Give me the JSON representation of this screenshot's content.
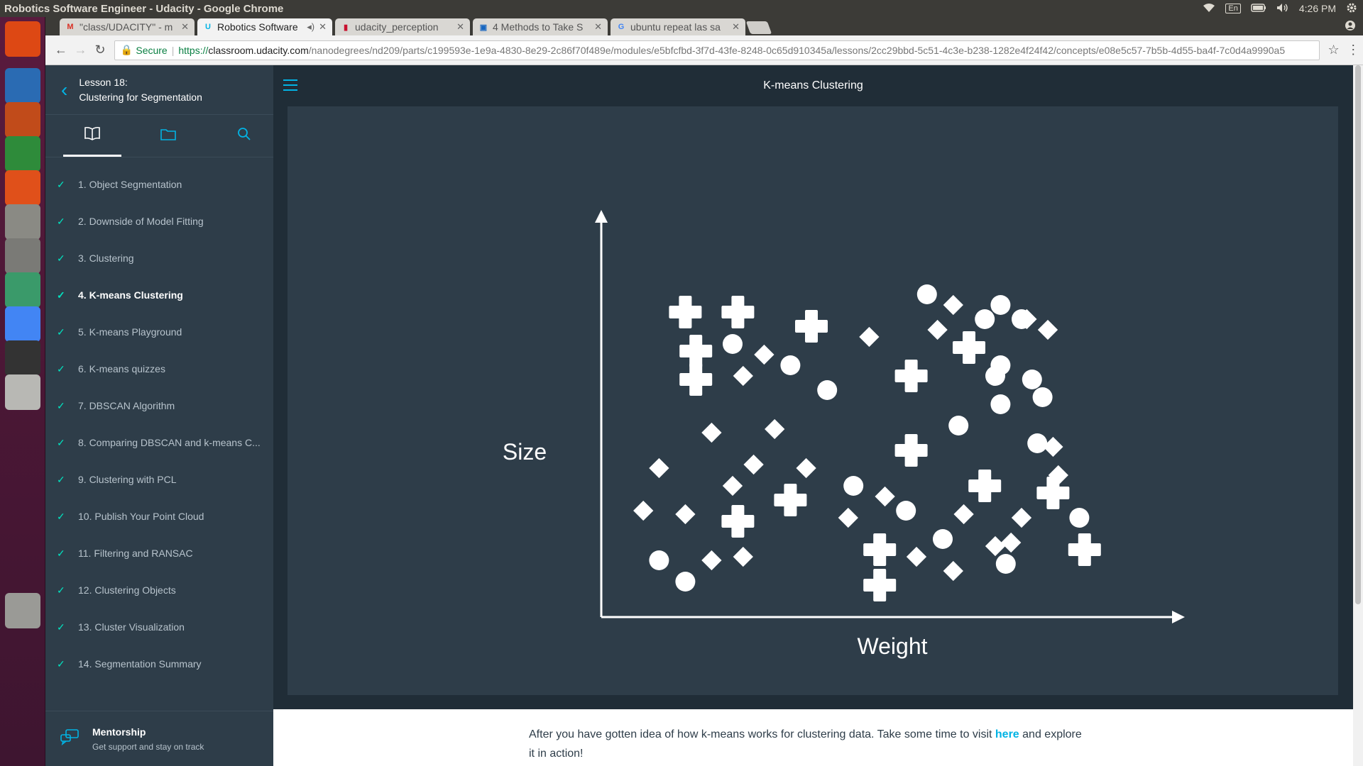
{
  "os": {
    "window_title": "Robotics Software Engineer - Udacity - Google Chrome",
    "keyboard_layout": "En",
    "clock": "4:26 PM"
  },
  "launcher": [
    {
      "name": "ubuntu-dash-icon",
      "color": "#dd4814"
    },
    {
      "name": "writer-icon",
      "color": "#2a6bb3"
    },
    {
      "name": "impress-icon",
      "color": "#c14b1a"
    },
    {
      "name": "calc-icon",
      "color": "#2e8b3a"
    },
    {
      "name": "software-center-icon",
      "color": "#e0501a"
    },
    {
      "name": "files-icon",
      "color": "#8a8a84"
    },
    {
      "name": "system-settings-icon",
      "color": "#7a7a76"
    },
    {
      "name": "atom-icon",
      "color": "#3a9a6a"
    },
    {
      "name": "chrome-icon",
      "color": "#4285f4"
    },
    {
      "name": "terminal-icon",
      "color": "#333333"
    },
    {
      "name": "disk-icon",
      "color": "#b8b8b4"
    },
    {
      "name": "trash-icon",
      "color": "#9a9a96"
    }
  ],
  "tabs": [
    {
      "title": "\"class/UDACITY\" - m",
      "favicon": "M",
      "fav_color": "#d93025"
    },
    {
      "title": "Robotics Software",
      "favicon": "U",
      "fav_color": "#02b3e4"
    },
    {
      "title": "udacity_perception",
      "favicon": "▮",
      "fav_color": "#c8102e"
    },
    {
      "title": "4 Methods to Take S",
      "favicon": "▣",
      "fav_color": "#1565c0"
    },
    {
      "title": "ubuntu repeat las sa",
      "favicon": "G",
      "fav_color": "#4285f4"
    }
  ],
  "address": {
    "secure_label": "Secure",
    "scheme": "https://",
    "host": "classroom.udacity.com",
    "path": "/nanodegrees/nd209/parts/c199593e-1e9a-4830-8e29-2c86f70f489e/modules/e5bfcfbd-3f7d-43fe-8248-0c65d910345a/lessons/2cc29bbd-5c51-4c3e-b238-1282e4f24f42/concepts/e08e5c57-7b5b-4d55-ba4f-7c0d4a9990a5"
  },
  "sidebar": {
    "lesson_number": "Lesson 18:",
    "lesson_title": "Clustering for Segmentation",
    "concepts": [
      "1. Object Segmentation",
      "2. Downside of Model Fitting",
      "3. Clustering",
      "4. K-means Clustering",
      "5. K-means Playground",
      "6. K-means quizzes",
      "7. DBSCAN Algorithm",
      "8. Comparing DBSCAN and k-means C...",
      "9. Clustering with PCL",
      "10. Publish Your Point Cloud",
      "11. Filtering and RANSAC",
      "12. Clustering Objects",
      "13. Cluster Visualization",
      "14. Segmentation Summary"
    ],
    "active_index": 3,
    "mentorship_title": "Mentorship",
    "mentorship_subtitle": "Get support and stay on track"
  },
  "main": {
    "concept_title": "K-means Clustering",
    "body_text_before": "After you have gotten idea of how k-means works for clustering data. Take some time to visit ",
    "body_link": "here",
    "body_text_after": " and explore it in action!"
  },
  "chart_data": {
    "type": "scatter",
    "title": "",
    "xlabel": "Weight",
    "ylabel": "Size",
    "xlim": [
      0,
      100
    ],
    "ylim": [
      0,
      100
    ],
    "grid": false,
    "series": [
      {
        "marker": "cross",
        "points": [
          [
            16,
            86
          ],
          [
            26,
            86
          ],
          [
            40,
            82
          ],
          [
            18,
            75
          ],
          [
            18,
            67
          ],
          [
            59,
            68
          ],
          [
            70,
            76
          ],
          [
            59,
            47
          ],
          [
            73,
            37
          ],
          [
            36,
            33
          ],
          [
            26,
            27
          ],
          [
            53,
            19
          ],
          [
            53,
            9
          ],
          [
            86,
            35
          ],
          [
            92,
            19
          ]
        ]
      },
      {
        "marker": "circle",
        "points": [
          [
            25,
            77
          ],
          [
            36,
            71
          ],
          [
            43,
            64
          ],
          [
            62,
            91
          ],
          [
            73,
            84
          ],
          [
            76,
            88
          ],
          [
            80,
            84
          ],
          [
            75,
            68
          ],
          [
            76,
            71
          ],
          [
            82,
            67
          ],
          [
            84,
            62
          ],
          [
            76,
            60
          ],
          [
            68,
            54
          ],
          [
            83,
            49
          ],
          [
            48,
            37
          ],
          [
            58,
            30
          ],
          [
            65,
            22
          ],
          [
            91,
            28
          ],
          [
            11,
            16
          ],
          [
            16,
            10
          ],
          [
            77,
            15
          ]
        ]
      },
      {
        "marker": "diamond",
        "points": [
          [
            31,
            74
          ],
          [
            27,
            68
          ],
          [
            67,
            88
          ],
          [
            64,
            81
          ],
          [
            81,
            84
          ],
          [
            85,
            81
          ],
          [
            51,
            79
          ],
          [
            21,
            52
          ],
          [
            33,
            53
          ],
          [
            11,
            42
          ],
          [
            29,
            43
          ],
          [
            39,
            42
          ],
          [
            25,
            37
          ],
          [
            8,
            30
          ],
          [
            16,
            29
          ],
          [
            86,
            48
          ],
          [
            87,
            40
          ],
          [
            54,
            34
          ],
          [
            47,
            28
          ],
          [
            69,
            29
          ],
          [
            75,
            20
          ],
          [
            78,
            21
          ],
          [
            80,
            28
          ],
          [
            60,
            17
          ],
          [
            67,
            13
          ],
          [
            21,
            16
          ],
          [
            27,
            17
          ]
        ]
      }
    ]
  }
}
